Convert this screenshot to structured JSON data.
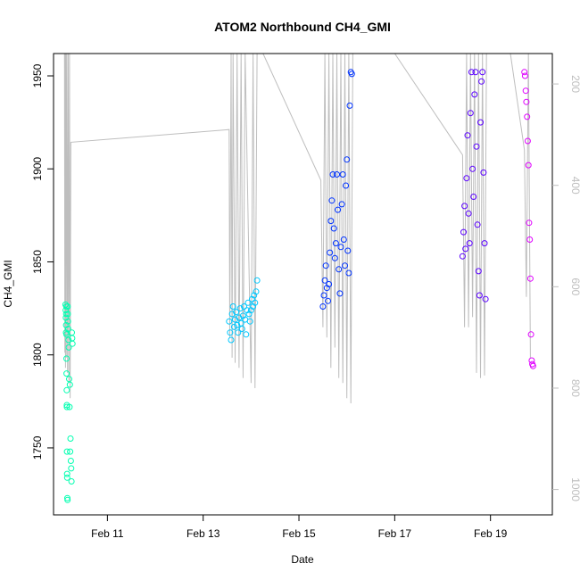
{
  "chart_data": {
    "type": "scatter",
    "title": "ATOM2 Northbound CH4_GMI",
    "xlabel": "Date",
    "ylabel": "CH4_GMI",
    "x_axis": {
      "min": "2017-02-09T21:00",
      "max": "2017-02-20T07:00",
      "ticks": [
        {
          "date": "2017-02-11T00:00",
          "label": "Feb 11"
        },
        {
          "date": "2017-02-13T00:00",
          "label": "Feb 13"
        },
        {
          "date": "2017-02-15T00:00",
          "label": "Feb 15"
        },
        {
          "date": "2017-02-17T00:00",
          "label": "Feb 17"
        },
        {
          "date": "2017-02-19T00:00",
          "label": "Feb 19"
        }
      ]
    },
    "y_axis": {
      "min": 1714,
      "max": 1962,
      "ticks": [
        1750,
        1800,
        1850,
        1900,
        1950
      ]
    },
    "y2_axis": {
      "color": "#bebebe",
      "inverted": true,
      "min": 1050,
      "max": 140,
      "ticks": [
        200,
        400,
        600,
        800,
        1000
      ]
    },
    "grid": false,
    "legend": "none",
    "colors": {
      "flight1": "#00ffb0",
      "flight2": "#00c8ff",
      "flight3": "#0033ff",
      "flight4": "#5a00ff",
      "flight5": "#e000ff",
      "pressure": "#bebebe"
    },
    "series": [
      {
        "marker": "open-circle",
        "color": "#00ffb0",
        "points": [
          {
            "x": "2017-02-10T03:00",
            "y": 1827
          },
          {
            "x": "2017-02-10T03:05",
            "y": 1824
          },
          {
            "x": "2017-02-10T03:10",
            "y": 1820
          },
          {
            "x": "2017-02-10T03:15",
            "y": 1812
          },
          {
            "x": "2017-02-10T03:18",
            "y": 1816
          },
          {
            "x": "2017-02-10T03:22",
            "y": 1822
          },
          {
            "x": "2017-02-10T03:25",
            "y": 1826
          },
          {
            "x": "2017-02-10T03:28",
            "y": 1811
          },
          {
            "x": "2017-02-10T03:30",
            "y": 1798
          },
          {
            "x": "2017-02-10T03:33",
            "y": 1790
          },
          {
            "x": "2017-02-10T03:36",
            "y": 1781
          },
          {
            "x": "2017-02-10T03:40",
            "y": 1773
          },
          {
            "x": "2017-02-10T03:42",
            "y": 1772
          },
          {
            "x": "2017-02-10T03:45",
            "y": 1748
          },
          {
            "x": "2017-02-10T03:48",
            "y": 1736
          },
          {
            "x": "2017-02-10T03:50",
            "y": 1734
          },
          {
            "x": "2017-02-10T03:55",
            "y": 1723
          },
          {
            "x": "2017-02-10T04:00",
            "y": 1722
          },
          {
            "x": "2017-02-10T04:05",
            "y": 1826
          },
          {
            "x": "2017-02-10T04:10",
            "y": 1822
          },
          {
            "x": "2017-02-10T04:15",
            "y": 1818
          },
          {
            "x": "2017-02-10T04:20",
            "y": 1814
          },
          {
            "x": "2017-02-10T04:30",
            "y": 1808
          },
          {
            "x": "2017-02-10T04:40",
            "y": 1804
          },
          {
            "x": "2017-02-10T04:50",
            "y": 1787
          },
          {
            "x": "2017-02-10T05:00",
            "y": 1772
          },
          {
            "x": "2017-02-10T05:10",
            "y": 1784
          },
          {
            "x": "2017-02-10T05:20",
            "y": 1748
          },
          {
            "x": "2017-02-10T05:30",
            "y": 1755
          },
          {
            "x": "2017-02-10T05:40",
            "y": 1743
          },
          {
            "x": "2017-02-10T05:50",
            "y": 1739
          },
          {
            "x": "2017-02-10T06:00",
            "y": 1732
          },
          {
            "x": "2017-02-10T06:10",
            "y": 1812
          },
          {
            "x": "2017-02-10T06:20",
            "y": 1809
          },
          {
            "x": "2017-02-10T06:30",
            "y": 1806
          }
        ]
      },
      {
        "marker": "open-circle",
        "color": "#00c8ff",
        "points": [
          {
            "x": "2017-02-13T13:00",
            "y": 1818
          },
          {
            "x": "2017-02-13T13:30",
            "y": 1812
          },
          {
            "x": "2017-02-13T14:00",
            "y": 1808
          },
          {
            "x": "2017-02-13T14:30",
            "y": 1822
          },
          {
            "x": "2017-02-13T15:00",
            "y": 1826
          },
          {
            "x": "2017-02-13T15:30",
            "y": 1815
          },
          {
            "x": "2017-02-13T16:00",
            "y": 1819
          },
          {
            "x": "2017-02-13T16:30",
            "y": 1823
          },
          {
            "x": "2017-02-13T17:00",
            "y": 1816
          },
          {
            "x": "2017-02-13T17:30",
            "y": 1812
          },
          {
            "x": "2017-02-13T18:00",
            "y": 1820
          },
          {
            "x": "2017-02-13T18:30",
            "y": 1825
          },
          {
            "x": "2017-02-13T19:00",
            "y": 1817
          },
          {
            "x": "2017-02-13T19:30",
            "y": 1814
          },
          {
            "x": "2017-02-13T20:00",
            "y": 1821
          },
          {
            "x": "2017-02-13T20:30",
            "y": 1826
          },
          {
            "x": "2017-02-13T21:00",
            "y": 1819
          },
          {
            "x": "2017-02-13T21:30",
            "y": 1811
          },
          {
            "x": "2017-02-13T22:00",
            "y": 1824
          },
          {
            "x": "2017-02-13T22:30",
            "y": 1828
          },
          {
            "x": "2017-02-13T23:00",
            "y": 1822
          },
          {
            "x": "2017-02-13T23:30",
            "y": 1818
          },
          {
            "x": "2017-02-14T00:00",
            "y": 1824
          },
          {
            "x": "2017-02-14T00:30",
            "y": 1830
          },
          {
            "x": "2017-02-14T01:00",
            "y": 1826
          },
          {
            "x": "2017-02-14T01:30",
            "y": 1832
          },
          {
            "x": "2017-02-14T02:00",
            "y": 1828
          },
          {
            "x": "2017-02-14T02:30",
            "y": 1834
          },
          {
            "x": "2017-02-14T03:00",
            "y": 1840
          }
        ]
      },
      {
        "marker": "open-circle",
        "color": "#0033ff",
        "points": [
          {
            "x": "2017-02-15T12:00",
            "y": 1826
          },
          {
            "x": "2017-02-15T12:30",
            "y": 1832
          },
          {
            "x": "2017-02-15T13:00",
            "y": 1840
          },
          {
            "x": "2017-02-15T13:30",
            "y": 1848
          },
          {
            "x": "2017-02-15T14:00",
            "y": 1836
          },
          {
            "x": "2017-02-15T14:30",
            "y": 1829
          },
          {
            "x": "2017-02-15T15:00",
            "y": 1838
          },
          {
            "x": "2017-02-15T15:30",
            "y": 1855
          },
          {
            "x": "2017-02-15T16:00",
            "y": 1872
          },
          {
            "x": "2017-02-15T16:30",
            "y": 1883
          },
          {
            "x": "2017-02-15T17:00",
            "y": 1897
          },
          {
            "x": "2017-02-15T17:30",
            "y": 1868
          },
          {
            "x": "2017-02-15T18:00",
            "y": 1852
          },
          {
            "x": "2017-02-15T18:30",
            "y": 1860
          },
          {
            "x": "2017-02-15T19:00",
            "y": 1897
          },
          {
            "x": "2017-02-15T19:30",
            "y": 1878
          },
          {
            "x": "2017-02-15T20:00",
            "y": 1846
          },
          {
            "x": "2017-02-15T20:30",
            "y": 1833
          },
          {
            "x": "2017-02-15T21:00",
            "y": 1858
          },
          {
            "x": "2017-02-15T21:30",
            "y": 1881
          },
          {
            "x": "2017-02-15T22:00",
            "y": 1897
          },
          {
            "x": "2017-02-15T22:30",
            "y": 1862
          },
          {
            "x": "2017-02-15T23:00",
            "y": 1848
          },
          {
            "x": "2017-02-15T23:30",
            "y": 1891
          },
          {
            "x": "2017-02-16T00:00",
            "y": 1905
          },
          {
            "x": "2017-02-16T00:30",
            "y": 1856
          },
          {
            "x": "2017-02-16T01:00",
            "y": 1844
          },
          {
            "x": "2017-02-16T01:30",
            "y": 1934
          },
          {
            "x": "2017-02-16T02:00",
            "y": 1952
          },
          {
            "x": "2017-02-16T02:30",
            "y": 1951
          }
        ]
      },
      {
        "marker": "open-circle",
        "color": "#5a00ff",
        "points": [
          {
            "x": "2017-02-18T10:00",
            "y": 1853
          },
          {
            "x": "2017-02-18T10:30",
            "y": 1866
          },
          {
            "x": "2017-02-18T11:00",
            "y": 1880
          },
          {
            "x": "2017-02-18T11:30",
            "y": 1857
          },
          {
            "x": "2017-02-18T12:00",
            "y": 1895
          },
          {
            "x": "2017-02-18T12:30",
            "y": 1918
          },
          {
            "x": "2017-02-18T13:00",
            "y": 1876
          },
          {
            "x": "2017-02-18T13:30",
            "y": 1860
          },
          {
            "x": "2017-02-18T14:00",
            "y": 1930
          },
          {
            "x": "2017-02-18T14:30",
            "y": 1952
          },
          {
            "x": "2017-02-18T15:00",
            "y": 1900
          },
          {
            "x": "2017-02-18T15:30",
            "y": 1885
          },
          {
            "x": "2017-02-18T16:00",
            "y": 1940
          },
          {
            "x": "2017-02-18T16:30",
            "y": 1952
          },
          {
            "x": "2017-02-18T17:00",
            "y": 1912
          },
          {
            "x": "2017-02-18T17:30",
            "y": 1870
          },
          {
            "x": "2017-02-18T18:00",
            "y": 1845
          },
          {
            "x": "2017-02-18T18:30",
            "y": 1832
          },
          {
            "x": "2017-02-18T19:00",
            "y": 1925
          },
          {
            "x": "2017-02-18T19:30",
            "y": 1947
          },
          {
            "x": "2017-02-18T20:00",
            "y": 1952
          },
          {
            "x": "2017-02-18T20:30",
            "y": 1898
          },
          {
            "x": "2017-02-18T21:00",
            "y": 1860
          },
          {
            "x": "2017-02-18T21:30",
            "y": 1830
          }
        ]
      },
      {
        "marker": "open-circle",
        "color": "#e000ff",
        "points": [
          {
            "x": "2017-02-19T17:00",
            "y": 1952
          },
          {
            "x": "2017-02-19T17:20",
            "y": 1950
          },
          {
            "x": "2017-02-19T17:40",
            "y": 1942
          },
          {
            "x": "2017-02-19T18:00",
            "y": 1936
          },
          {
            "x": "2017-02-19T18:20",
            "y": 1928
          },
          {
            "x": "2017-02-19T18:40",
            "y": 1915
          },
          {
            "x": "2017-02-19T19:00",
            "y": 1902
          },
          {
            "x": "2017-02-19T19:20",
            "y": 1871
          },
          {
            "x": "2017-02-19T19:40",
            "y": 1862
          },
          {
            "x": "2017-02-19T20:00",
            "y": 1841
          },
          {
            "x": "2017-02-19T20:20",
            "y": 1811
          },
          {
            "x": "2017-02-19T20:40",
            "y": 1797
          },
          {
            "x": "2017-02-19T21:00",
            "y": 1795
          },
          {
            "x": "2017-02-19T21:20",
            "y": 1794
          }
        ]
      }
    ],
    "pressure_line": {
      "color": "#bebebe",
      "points": [
        {
          "x": "2017-02-10T02:30",
          "y": 140
        },
        {
          "x": "2017-02-10T02:40",
          "y": 730
        },
        {
          "x": "2017-02-10T02:50",
          "y": 140
        },
        {
          "x": "2017-02-10T03:00",
          "y": 760
        },
        {
          "x": "2017-02-10T03:10",
          "y": 140
        },
        {
          "x": "2017-02-10T03:20",
          "y": 740
        },
        {
          "x": "2017-02-10T03:40",
          "y": 140
        },
        {
          "x": "2017-02-10T04:00",
          "y": 770
        },
        {
          "x": "2017-02-10T04:20",
          "y": 140
        },
        {
          "x": "2017-02-10T04:40",
          "y": 790
        },
        {
          "x": "2017-02-10T05:00",
          "y": 140
        },
        {
          "x": "2017-02-10T05:20",
          "y": 820
        },
        {
          "x": "2017-02-10T05:40",
          "y": 315
        },
        {
          "x": "2017-02-13T13:00",
          "y": 290
        },
        {
          "x": "2017-02-13T13:20",
          "y": 700
        },
        {
          "x": "2017-02-13T14:00",
          "y": 140
        },
        {
          "x": "2017-02-13T14:30",
          "y": 740
        },
        {
          "x": "2017-02-13T15:00",
          "y": 140
        },
        {
          "x": "2017-02-13T16:00",
          "y": 750
        },
        {
          "x": "2017-02-13T17:00",
          "y": 140
        },
        {
          "x": "2017-02-13T18:00",
          "y": 760
        },
        {
          "x": "2017-02-13T19:00",
          "y": 140
        },
        {
          "x": "2017-02-13T20:00",
          "y": 780
        },
        {
          "x": "2017-02-13T21:00",
          "y": 140
        },
        {
          "x": "2017-02-14T00:00",
          "y": 790
        },
        {
          "x": "2017-02-14T01:00",
          "y": 140
        },
        {
          "x": "2017-02-14T02:00",
          "y": 800
        },
        {
          "x": "2017-02-14T03:00",
          "y": 140
        },
        {
          "x": "2017-02-14T06:00",
          "y": 140
        },
        {
          "x": "2017-02-15T11:00",
          "y": 390
        },
        {
          "x": "2017-02-15T12:00",
          "y": 680
        },
        {
          "x": "2017-02-15T13:00",
          "y": 140
        },
        {
          "x": "2017-02-15T14:00",
          "y": 700
        },
        {
          "x": "2017-02-15T15:00",
          "y": 140
        },
        {
          "x": "2017-02-15T16:00",
          "y": 760
        },
        {
          "x": "2017-02-15T17:00",
          "y": 140
        },
        {
          "x": "2017-02-15T18:00",
          "y": 720
        },
        {
          "x": "2017-02-15T19:00",
          "y": 140
        },
        {
          "x": "2017-02-15T20:00",
          "y": 780
        },
        {
          "x": "2017-02-15T21:00",
          "y": 140
        },
        {
          "x": "2017-02-15T22:00",
          "y": 790
        },
        {
          "x": "2017-02-15T23:00",
          "y": 140
        },
        {
          "x": "2017-02-16T00:00",
          "y": 820
        },
        {
          "x": "2017-02-16T01:00",
          "y": 140
        },
        {
          "x": "2017-02-16T02:00",
          "y": 830
        },
        {
          "x": "2017-02-16T03:00",
          "y": 140
        },
        {
          "x": "2017-02-17T00:00",
          "y": 140
        },
        {
          "x": "2017-02-18T10:00",
          "y": 340
        },
        {
          "x": "2017-02-18T11:00",
          "y": 680
        },
        {
          "x": "2017-02-18T12:00",
          "y": 140
        },
        {
          "x": "2017-02-18T13:00",
          "y": 680
        },
        {
          "x": "2017-02-18T14:00",
          "y": 140
        },
        {
          "x": "2017-02-18T15:00",
          "y": 660
        },
        {
          "x": "2017-02-18T16:00",
          "y": 140
        },
        {
          "x": "2017-02-18T17:00",
          "y": 770
        },
        {
          "x": "2017-02-18T18:00",
          "y": 140
        },
        {
          "x": "2017-02-18T19:00",
          "y": 780
        },
        {
          "x": "2017-02-18T20:00",
          "y": 140
        },
        {
          "x": "2017-02-18T21:00",
          "y": 775
        },
        {
          "x": "2017-02-18T22:00",
          "y": 140
        },
        {
          "x": "2017-02-19T10:00",
          "y": 140
        },
        {
          "x": "2017-02-19T17:00",
          "y": 330
        },
        {
          "x": "2017-02-19T18:00",
          "y": 620
        },
        {
          "x": "2017-02-19T19:00",
          "y": 130
        },
        {
          "x": "2017-02-19T20:00",
          "y": 740
        }
      ]
    }
  }
}
